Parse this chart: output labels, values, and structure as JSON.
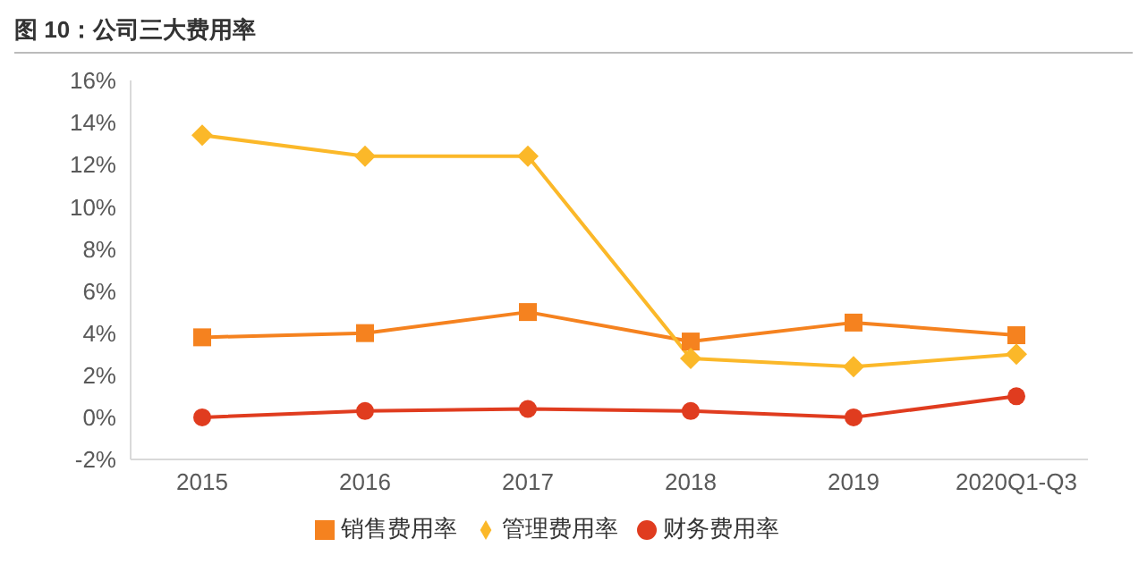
{
  "chart_data": {
    "type": "line",
    "title": "图 10：公司三大费用率",
    "categories": [
      "2015",
      "2016",
      "2017",
      "2018",
      "2019",
      "2020Q1-Q3"
    ],
    "series": [
      {
        "name": "销售费用率",
        "color": "#f5821f",
        "marker": "square",
        "values": [
          3.8,
          4.0,
          5.0,
          3.6,
          4.5,
          3.9
        ]
      },
      {
        "name": "管理费用率",
        "color": "#fbb829",
        "marker": "diamond",
        "values": [
          13.4,
          12.4,
          12.4,
          2.8,
          2.4,
          3.0
        ]
      },
      {
        "name": "财务费用率",
        "color": "#e03c1f",
        "marker": "circle",
        "values": [
          0.0,
          0.3,
          0.4,
          0.3,
          0.0,
          1.0
        ]
      }
    ],
    "ylim": [
      -2,
      16
    ],
    "yticks": [
      {
        "value": -2,
        "label": "-2%"
      },
      {
        "value": 0,
        "label": "0%"
      },
      {
        "value": 2,
        "label": "2%"
      },
      {
        "value": 4,
        "label": "4%"
      },
      {
        "value": 6,
        "label": "6%"
      },
      {
        "value": 8,
        "label": "8%"
      },
      {
        "value": 10,
        "label": "10%"
      },
      {
        "value": 12,
        "label": "12%"
      },
      {
        "value": 14,
        "label": "14%"
      },
      {
        "value": 16,
        "label": "16%"
      }
    ],
    "grid": false,
    "legend": "bottom",
    "line_style": "solid"
  }
}
